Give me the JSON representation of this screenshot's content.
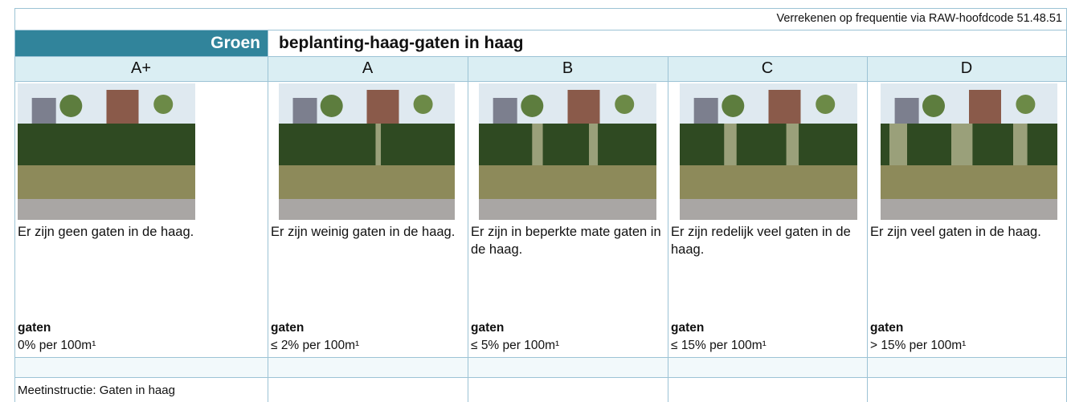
{
  "header": {
    "note": "Verrekenen op frequentie via RAW-hoofdcode 51.48.51",
    "category": "Groen",
    "title": "beplanting-haag-gaten in haag"
  },
  "columns": [
    {
      "grade": "A+",
      "description": "Er zijn geen gaten in de haag.",
      "metric_label": "gaten",
      "metric_value": "0% per 100m¹"
    },
    {
      "grade": "A",
      "description": "Er zijn weinig gaten in de haag.",
      "metric_label": "gaten",
      "metric_value": "≤ 2% per 100m¹"
    },
    {
      "grade": "B",
      "description": "Er zijn in beperkte mate gaten in de haag.",
      "metric_label": "gaten",
      "metric_value": "≤ 5% per 100m¹"
    },
    {
      "grade": "C",
      "description": "Er zijn redelijk veel gaten in de haag.",
      "metric_label": "gaten",
      "metric_value": "≤ 15% per 100m¹"
    },
    {
      "grade": "D",
      "description": "Er zijn veel gaten in de haag.",
      "metric_label": "gaten",
      "metric_value": "> 15% per 100m¹"
    }
  ],
  "footer": {
    "instruction": "Meetinstructie: Gaten in haag"
  }
}
